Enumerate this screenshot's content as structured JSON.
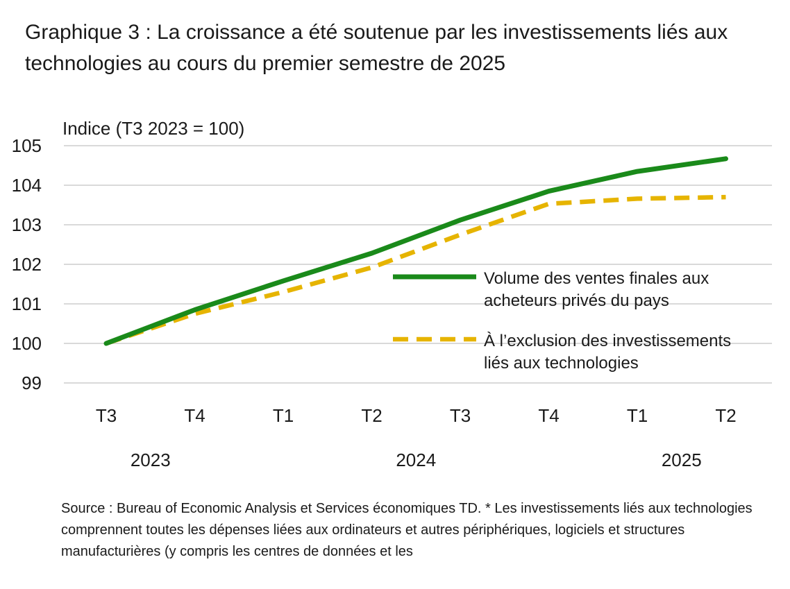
{
  "title": "Graphique 3 : La croissance a été soutenue par les investissements liés aux technologies au cours du premier semestre de 2025",
  "source": "Source : Bureau of Economic Analysis et Services économiques TD. * Les investissements liés aux technologies comprennent toutes les dépenses liées aux ordinateurs et autres périphériques, logiciels et structures manufacturières (y compris les centres de données et les",
  "colors": {
    "series1": "#1a8a1a",
    "series2": "#e6b400",
    "grid": "#d9d9d9"
  },
  "chart_data": {
    "type": "line",
    "title": "Graphique 3 : La croissance a été soutenue par les investissements liés aux technologies au cours du premier semestre de 2025",
    "ylabel": "Indice (T3 2023 = 100)",
    "xlabel": "",
    "ylim": [
      99,
      105
    ],
    "yticks": [
      99,
      100,
      101,
      102,
      103,
      104,
      105
    ],
    "categories": [
      "T3",
      "T4",
      "T1",
      "T2",
      "T3",
      "T4",
      "T1",
      "T2"
    ],
    "years": [
      {
        "label": "2023",
        "span": [
          0,
          1
        ]
      },
      {
        "label": "2024",
        "span": [
          2,
          5
        ]
      },
      {
        "label": "2025",
        "span": [
          6,
          7
        ]
      }
    ],
    "grid": true,
    "legend_position": "right-middle",
    "series": [
      {
        "name": "Volume des ventes finales aux acheteurs privés du pays",
        "legend_lines": [
          "Volume des ventes finales aux",
          "acheteurs privés du pays"
        ],
        "style": "solid",
        "color": "#1a8a1a",
        "values": [
          100.0,
          100.85,
          101.58,
          102.28,
          103.12,
          103.85,
          104.35,
          104.67
        ]
      },
      {
        "name": "À l’exclusion des investissements liés aux technologies",
        "legend_lines": [
          "À l’exclusion des investissements",
          "liés aux technologies"
        ],
        "style": "dashed",
        "color": "#e6b400",
        "values": [
          100.0,
          100.75,
          101.3,
          101.92,
          102.75,
          103.53,
          103.66,
          103.7
        ]
      }
    ]
  }
}
